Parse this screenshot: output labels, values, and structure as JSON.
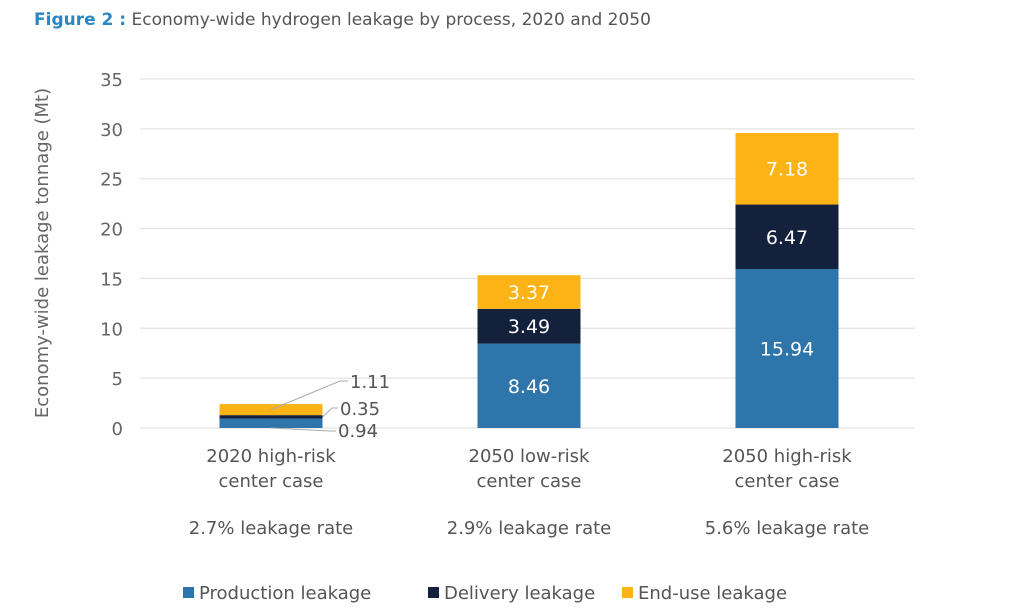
{
  "chart_data": {
    "type": "bar",
    "stacked": true,
    "figure_label": "Figure 2 :",
    "title": "Economy-wide hydrogen leakage by process, 2020 and 2050",
    "ylabel": "Economy-wide leakage tonnage (Mt)",
    "xlabel": "",
    "ylim": [
      0,
      35
    ],
    "yticks": [
      0,
      5,
      10,
      15,
      20,
      25,
      30,
      35
    ],
    "grid": true,
    "legend_position": "bottom",
    "categories": [
      [
        "2020 high-risk",
        "center case"
      ],
      [
        "2050 low-risk",
        "center case"
      ],
      [
        "2050 high-risk",
        "center case"
      ]
    ],
    "category_notes": [
      "2.7% leakage rate",
      "2.9% leakage rate",
      "5.6% leakage rate"
    ],
    "series": [
      {
        "name": "Production leakage",
        "color": "#2e75ab",
        "values": [
          0.94,
          8.46,
          15.94
        ]
      },
      {
        "name": "Delivery leakage",
        "color": "#14213d",
        "values": [
          0.35,
          3.49,
          6.47
        ]
      },
      {
        "name": "End-use leakage",
        "color": "#fbb316",
        "values": [
          1.11,
          3.37,
          7.18
        ]
      }
    ]
  }
}
